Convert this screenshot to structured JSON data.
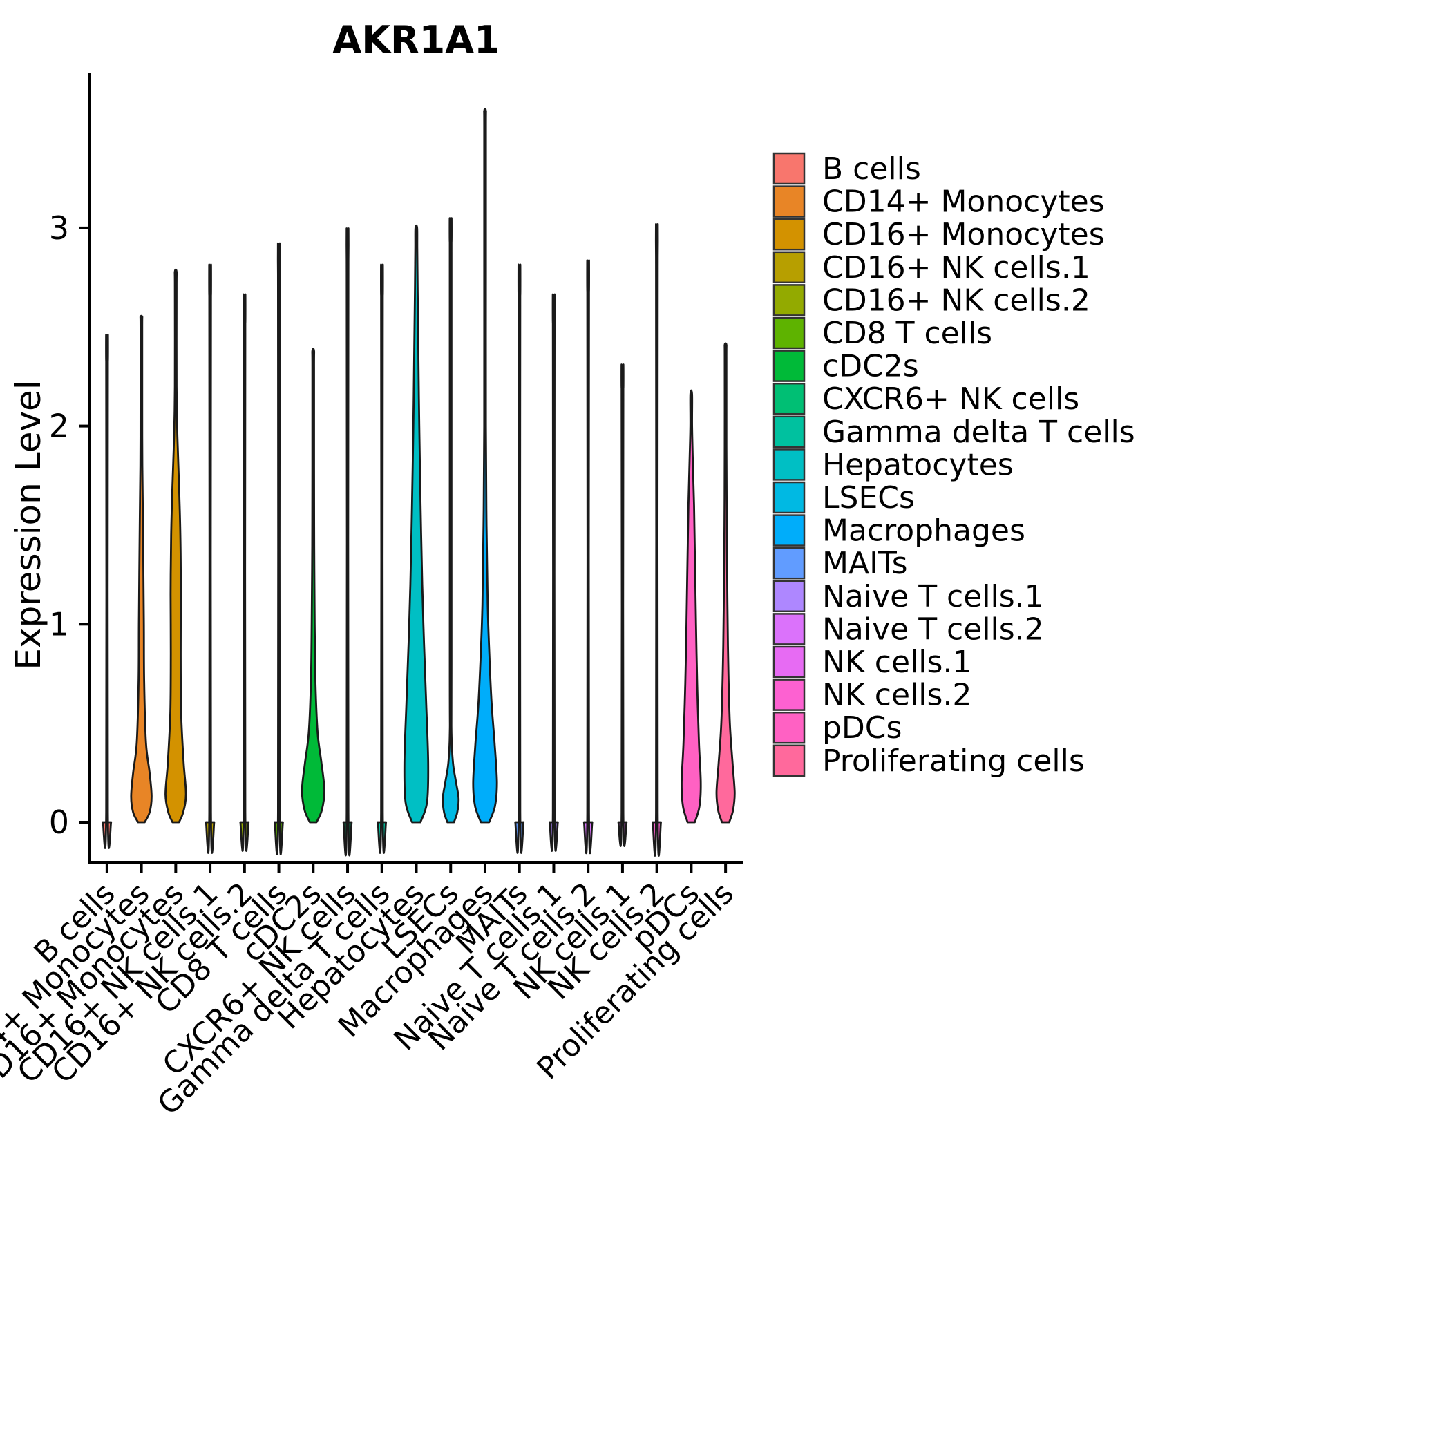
{
  "chart_data": {
    "type": "violin",
    "title": "AKR1A1",
    "ylabel": "Expression Level",
    "yticks": [
      0,
      1,
      2,
      3
    ],
    "ylim": [
      0,
      3.78
    ],
    "grid": false,
    "legend_position": "right",
    "background": "#FFFFFF",
    "axis_color": "#000000",
    "outline_color": "#1A1A1A",
    "categories": [
      {
        "name": "B cells",
        "color": "#F8766D",
        "max": 2.33,
        "profile": [
          [
            0,
            0.25
          ],
          [
            0.05,
            0.025
          ],
          [
            2.28,
            0.016
          ],
          [
            2.33,
            0.014
          ]
        ]
      },
      {
        "name": "CD14+ Monocytes",
        "color": "#E88526",
        "max": 2.55,
        "profile": [
          [
            0,
            0.2
          ],
          [
            0.05,
            0.5
          ],
          [
            0.13,
            0.62
          ],
          [
            0.25,
            0.5
          ],
          [
            0.4,
            0.28
          ],
          [
            0.7,
            0.17
          ],
          [
            1.0,
            0.15
          ],
          [
            1.4,
            0.11
          ],
          [
            1.8,
            0.06
          ],
          [
            2.1,
            0.035
          ],
          [
            2.5,
            0.018
          ],
          [
            2.55,
            0.015
          ]
        ]
      },
      {
        "name": "CD16+ Monocytes",
        "color": "#D39200",
        "max": 2.78,
        "profile": [
          [
            0,
            0.2
          ],
          [
            0.05,
            0.45
          ],
          [
            0.14,
            0.62
          ],
          [
            0.3,
            0.48
          ],
          [
            0.55,
            0.33
          ],
          [
            0.85,
            0.3
          ],
          [
            1.15,
            0.31
          ],
          [
            1.45,
            0.28
          ],
          [
            1.7,
            0.2
          ],
          [
            1.95,
            0.1
          ],
          [
            2.2,
            0.04
          ],
          [
            2.7,
            0.018
          ],
          [
            2.78,
            0.015
          ]
        ]
      },
      {
        "name": "CD16+ NK cells.1",
        "color": "#B79F00",
        "max": 2.66,
        "profile": [
          [
            0,
            0.25
          ],
          [
            0.05,
            0.025
          ],
          [
            2.61,
            0.016
          ],
          [
            2.66,
            0.014
          ]
        ]
      },
      {
        "name": "CD16+ NK cells.2",
        "color": "#93AA00",
        "max": 2.52,
        "profile": [
          [
            0,
            0.25
          ],
          [
            0.05,
            0.025
          ],
          [
            2.47,
            0.016
          ],
          [
            2.52,
            0.014
          ]
        ]
      },
      {
        "name": "CD8 T cells",
        "color": "#5EB300",
        "max": 2.76,
        "profile": [
          [
            0,
            0.25
          ],
          [
            0.05,
            0.025
          ],
          [
            2.71,
            0.016
          ],
          [
            2.76,
            0.014
          ]
        ]
      },
      {
        "name": "cDC2s",
        "color": "#00BA38",
        "max": 2.38,
        "profile": [
          [
            0,
            0.2
          ],
          [
            0.06,
            0.52
          ],
          [
            0.16,
            0.68
          ],
          [
            0.3,
            0.5
          ],
          [
            0.45,
            0.27
          ],
          [
            0.7,
            0.14
          ],
          [
            1.0,
            0.09
          ],
          [
            1.4,
            0.06
          ],
          [
            1.8,
            0.04
          ],
          [
            2.3,
            0.018
          ],
          [
            2.38,
            0.015
          ]
        ]
      },
      {
        "name": "CXCR6+ NK cells",
        "color": "#00BF74",
        "max": 2.83,
        "profile": [
          [
            0,
            0.25
          ],
          [
            0.05,
            0.025
          ],
          [
            2.78,
            0.016
          ],
          [
            2.83,
            0.014
          ]
        ]
      },
      {
        "name": "Gamma delta T cells",
        "color": "#00C19F",
        "max": 2.66,
        "profile": [
          [
            0,
            0.25
          ],
          [
            0.05,
            0.025
          ],
          [
            2.61,
            0.016
          ],
          [
            2.66,
            0.014
          ]
        ]
      },
      {
        "name": "Hepatocytes",
        "color": "#00BFC4",
        "max": 3.0,
        "profile": [
          [
            0,
            0.25
          ],
          [
            0.1,
            0.65
          ],
          [
            0.3,
            0.72
          ],
          [
            0.6,
            0.6
          ],
          [
            0.9,
            0.47
          ],
          [
            1.2,
            0.36
          ],
          [
            1.6,
            0.26
          ],
          [
            2.0,
            0.18
          ],
          [
            2.4,
            0.12
          ],
          [
            2.7,
            0.08
          ],
          [
            2.9,
            0.06
          ],
          [
            3.0,
            0.05
          ]
        ]
      },
      {
        "name": "LSECs",
        "color": "#00B9E3",
        "max": 2.93,
        "profile": [
          [
            0,
            0.2
          ],
          [
            0.05,
            0.4
          ],
          [
            0.12,
            0.48
          ],
          [
            0.2,
            0.33
          ],
          [
            0.3,
            0.14
          ],
          [
            0.45,
            0.05
          ],
          [
            0.8,
            0.025
          ],
          [
            2.88,
            0.016
          ],
          [
            2.93,
            0.014
          ]
        ]
      },
      {
        "name": "Macrophages",
        "color": "#00ADFA",
        "max": 3.59,
        "profile": [
          [
            0,
            0.25
          ],
          [
            0.08,
            0.6
          ],
          [
            0.2,
            0.72
          ],
          [
            0.4,
            0.58
          ],
          [
            0.6,
            0.4
          ],
          [
            0.85,
            0.26
          ],
          [
            1.1,
            0.16
          ],
          [
            1.5,
            0.09
          ],
          [
            2.0,
            0.05
          ],
          [
            2.8,
            0.025
          ],
          [
            3.5,
            0.016
          ],
          [
            3.59,
            0.014
          ]
        ]
      },
      {
        "name": "MAITs",
        "color": "#619CFF",
        "max": 2.66,
        "profile": [
          [
            0,
            0.25
          ],
          [
            0.05,
            0.025
          ],
          [
            2.61,
            0.016
          ],
          [
            2.66,
            0.014
          ]
        ]
      },
      {
        "name": "Naive T cells.1",
        "color": "#AE87FF",
        "max": 2.52,
        "profile": [
          [
            0,
            0.25
          ],
          [
            0.05,
            0.025
          ],
          [
            2.47,
            0.016
          ],
          [
            2.52,
            0.014
          ]
        ]
      },
      {
        "name": "Naive T cells.2",
        "color": "#DB72FB",
        "max": 2.68,
        "profile": [
          [
            0,
            0.25
          ],
          [
            0.05,
            0.025
          ],
          [
            2.63,
            0.016
          ],
          [
            2.68,
            0.014
          ]
        ]
      },
      {
        "name": "NK cells.1",
        "color": "#E76BF3",
        "max": 2.19,
        "profile": [
          [
            0,
            0.25
          ],
          [
            0.05,
            0.025
          ],
          [
            2.14,
            0.016
          ],
          [
            2.19,
            0.014
          ]
        ]
      },
      {
        "name": "NK cells.2",
        "color": "#FD61D1",
        "max": 2.85,
        "profile": [
          [
            0,
            0.25
          ],
          [
            0.05,
            0.025
          ],
          [
            2.8,
            0.016
          ],
          [
            2.85,
            0.014
          ]
        ]
      },
      {
        "name": "pDCs",
        "color": "#FF61C3",
        "max": 2.16,
        "profile": [
          [
            0,
            0.22
          ],
          [
            0.08,
            0.5
          ],
          [
            0.2,
            0.58
          ],
          [
            0.4,
            0.47
          ],
          [
            0.7,
            0.36
          ],
          [
            1.0,
            0.29
          ],
          [
            1.3,
            0.23
          ],
          [
            1.6,
            0.17
          ],
          [
            1.85,
            0.09
          ],
          [
            2.0,
            0.04
          ],
          [
            2.16,
            0.02
          ]
        ]
      },
      {
        "name": "Proliferating cells",
        "color": "#FF699C",
        "max": 2.41,
        "profile": [
          [
            0,
            0.22
          ],
          [
            0.06,
            0.45
          ],
          [
            0.15,
            0.55
          ],
          [
            0.3,
            0.42
          ],
          [
            0.5,
            0.26
          ],
          [
            0.8,
            0.16
          ],
          [
            1.1,
            0.11
          ],
          [
            1.5,
            0.07
          ],
          [
            1.9,
            0.04
          ],
          [
            2.35,
            0.02
          ],
          [
            2.41,
            0.016
          ]
        ]
      }
    ]
  }
}
